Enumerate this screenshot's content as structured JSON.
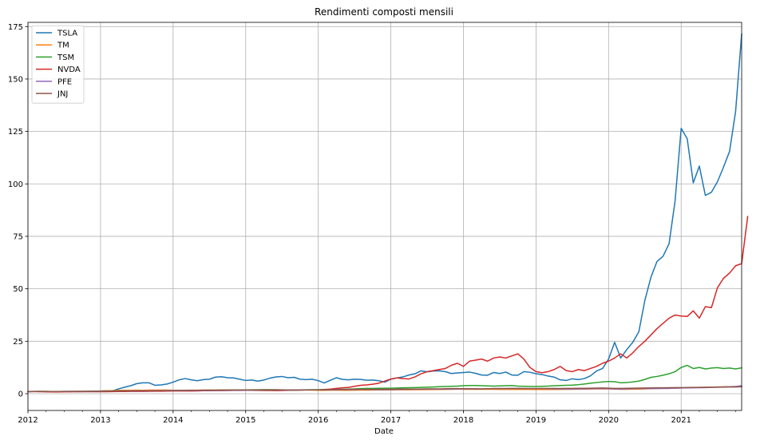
{
  "chart_data": {
    "type": "line",
    "title": "Rendimenti composti mensili",
    "xlabel": "Date",
    "ylabel": "",
    "x_axis": {
      "start": "2012-01",
      "end": "2021-11",
      "ticks": [
        "2012",
        "2013",
        "2014",
        "2015",
        "2016",
        "2017",
        "2018",
        "2019",
        "2020",
        "2021"
      ]
    },
    "ylim": [
      -8,
      177
    ],
    "yticks": [
      0,
      25,
      50,
      75,
      100,
      125,
      150,
      175
    ],
    "grid": true,
    "legend_position": "top-left",
    "series": [
      {
        "name": "TSLA",
        "color": "#1f77b4",
        "start": "2012-01",
        "values": [
          1,
          1.1,
          1.1,
          1.0,
          1.0,
          1.0,
          1.1,
          1.1,
          1.0,
          1.0,
          1.1,
          1.1,
          1.2,
          1.3,
          1.4,
          2.3,
          3.1,
          3.8,
          4.8,
          5.2,
          5.2,
          4.0,
          4.2,
          4.6,
          5.5,
          6.6,
          7.2,
          6.6,
          6.2,
          6.7,
          6.9,
          7.9,
          8.1,
          7.6,
          7.5,
          6.9,
          6.3,
          6.5,
          6.0,
          6.5,
          7.4,
          8.0,
          8.2,
          7.6,
          7.8,
          6.9,
          6.7,
          6.9,
          6.2,
          5.1,
          6.4,
          7.6,
          6.8,
          6.6,
          6.9,
          6.8,
          6.4,
          6.5,
          6.2,
          5.5,
          6.9,
          7.5,
          8.0,
          8.9,
          9.5,
          10.9,
          10.4,
          10.8,
          10.9,
          10.5,
          9.6,
          9.9,
          10.1,
          10.3,
          9.7,
          8.9,
          8.8,
          10.1,
          9.6,
          10.3,
          8.9,
          8.8,
          10.5,
          10.2,
          9.5,
          9.1,
          8.4,
          7.9,
          6.6,
          6.3,
          7.1,
          6.7,
          7.2,
          8.5,
          10.8,
          12.0,
          16.5,
          24.5,
          17.0,
          21.0,
          24.5,
          29.5,
          44.5,
          55.5,
          63.0,
          65.5,
          71.5,
          92.0,
          126.5,
          121.5,
          100.5,
          108.5,
          94.5,
          96.0,
          101.0,
          108.0,
          115.5,
          134.5,
          171.5
        ]
      },
      {
        "name": "TM",
        "color": "#ff7f0e",
        "start": "2012-01",
        "values": [
          1,
          1.05,
          1.1,
          1.1,
          1.0,
          1.0,
          1.0,
          1.1,
          1.1,
          1.1,
          1.1,
          1.2,
          1.3,
          1.4,
          1.45,
          1.6,
          1.6,
          1.6,
          1.65,
          1.6,
          1.7,
          1.7,
          1.7,
          1.7,
          1.6,
          1.6,
          1.6,
          1.65,
          1.65,
          1.7,
          1.7,
          1.7,
          1.75,
          1.75,
          1.75,
          1.75,
          1.8,
          1.8,
          1.85,
          1.9,
          1.9,
          1.9,
          1.85,
          1.8,
          1.75,
          1.75,
          1.75,
          1.7,
          1.6,
          1.6,
          1.65,
          1.7,
          1.6,
          1.6,
          1.65,
          1.7,
          1.7,
          1.75,
          1.8,
          1.8,
          1.8,
          1.85,
          1.85,
          1.85,
          1.9,
          1.9,
          1.95,
          2.0,
          2.0,
          2.05,
          2.1,
          2.2,
          2.1,
          2.1,
          2.15,
          2.1,
          2.1,
          2.1,
          2.05,
          2.05,
          2.1,
          2.05,
          2.1,
          2.05,
          2.0,
          2.0,
          2.0,
          2.05,
          2.05,
          2.1,
          2.1,
          2.15,
          2.2,
          2.25,
          2.3,
          2.3,
          2.3,
          2.2,
          2.1,
          2.1,
          2.15,
          2.2,
          2.3,
          2.4,
          2.45,
          2.5,
          2.5,
          2.6,
          2.7,
          2.8,
          2.9,
          3.0,
          3.1,
          3.1,
          3.2,
          3.3,
          3.3,
          3.4,
          3.4
        ]
      },
      {
        "name": "TSM",
        "color": "#2ca02c",
        "start": "2012-01",
        "values": [
          1,
          1.05,
          1.1,
          1.1,
          1.05,
          1.0,
          1.05,
          1.05,
          1.1,
          1.1,
          1.15,
          1.2,
          1.25,
          1.3,
          1.3,
          1.35,
          1.35,
          1.3,
          1.3,
          1.3,
          1.35,
          1.35,
          1.4,
          1.4,
          1.45,
          1.5,
          1.55,
          1.55,
          1.6,
          1.6,
          1.65,
          1.65,
          1.7,
          1.7,
          1.75,
          1.75,
          1.8,
          1.85,
          1.85,
          1.9,
          1.9,
          1.85,
          1.8,
          1.75,
          1.8,
          1.8,
          1.85,
          1.9,
          1.9,
          1.95,
          2.0,
          2.1,
          2.1,
          2.2,
          2.3,
          2.4,
          2.5,
          2.5,
          2.55,
          2.6,
          2.6,
          2.7,
          2.8,
          2.85,
          2.9,
          3.0,
          3.1,
          3.2,
          3.3,
          3.4,
          3.5,
          3.6,
          3.8,
          3.9,
          3.9,
          3.8,
          3.7,
          3.6,
          3.7,
          3.8,
          3.9,
          3.6,
          3.5,
          3.4,
          3.4,
          3.5,
          3.6,
          3.8,
          3.9,
          4.0,
          4.1,
          4.3,
          4.6,
          5.0,
          5.3,
          5.6,
          5.8,
          5.7,
          5.2,
          5.3,
          5.6,
          6.0,
          6.8,
          7.8,
          8.2,
          8.8,
          9.5,
          10.5,
          12.5,
          13.5,
          12.0,
          12.5,
          11.8,
          12.2,
          12.4,
          12.0,
          12.2,
          11.8,
          12.3
        ]
      },
      {
        "name": "NVDA",
        "color": "#d62728",
        "start": "2012-01",
        "values": [
          1,
          1.0,
          0.95,
          0.9,
          0.85,
          0.85,
          0.9,
          0.9,
          0.95,
          0.95,
          0.95,
          0.95,
          0.95,
          0.95,
          1.0,
          1.05,
          1.05,
          1.1,
          1.1,
          1.1,
          1.15,
          1.2,
          1.2,
          1.25,
          1.3,
          1.3,
          1.35,
          1.3,
          1.35,
          1.4,
          1.4,
          1.45,
          1.45,
          1.5,
          1.55,
          1.55,
          1.6,
          1.6,
          1.55,
          1.5,
          1.5,
          1.45,
          1.5,
          1.6,
          1.7,
          1.75,
          1.8,
          1.8,
          1.8,
          2.0,
          2.2,
          2.5,
          2.8,
          3.0,
          3.5,
          4.0,
          4.2,
          4.5,
          5.0,
          6.0,
          7.0,
          7.5,
          7.2,
          7.0,
          8.0,
          9.5,
          10.5,
          11.0,
          11.5,
          12.0,
          13.5,
          14.5,
          13.0,
          15.5,
          16.0,
          16.5,
          15.5,
          17.0,
          17.5,
          17.0,
          18.0,
          19.0,
          16.5,
          12.5,
          10.5,
          10.0,
          10.5,
          11.5,
          13.0,
          11.0,
          10.5,
          11.5,
          11.0,
          12.0,
          13.0,
          14.5,
          15.5,
          17.0,
          19.0,
          17.0,
          19.5,
          22.5,
          25.0,
          28.0,
          31.0,
          33.5,
          36.0,
          37.5,
          37.0,
          36.8,
          39.5,
          36.0,
          41.5,
          41.0,
          50.5,
          55.0,
          57.5,
          61.0,
          62.0,
          84.5
        ]
      },
      {
        "name": "PFE",
        "color": "#9467bd",
        "start": "2012-01",
        "values": [
          1,
          1.02,
          1.04,
          1.05,
          1.04,
          1.06,
          1.07,
          1.08,
          1.1,
          1.1,
          1.1,
          1.12,
          1.15,
          1.2,
          1.25,
          1.3,
          1.3,
          1.3,
          1.35,
          1.35,
          1.35,
          1.4,
          1.4,
          1.4,
          1.4,
          1.45,
          1.45,
          1.5,
          1.5,
          1.5,
          1.5,
          1.5,
          1.55,
          1.55,
          1.6,
          1.6,
          1.6,
          1.65,
          1.7,
          1.7,
          1.75,
          1.75,
          1.8,
          1.75,
          1.7,
          1.75,
          1.8,
          1.8,
          1.8,
          1.8,
          1.85,
          1.85,
          1.9,
          1.9,
          1.95,
          2.0,
          2.0,
          1.95,
          1.9,
          1.9,
          1.95,
          2.0,
          2.05,
          2.1,
          2.1,
          2.15,
          2.15,
          2.2,
          2.2,
          2.2,
          2.25,
          2.25,
          2.3,
          2.3,
          2.35,
          2.3,
          2.35,
          2.4,
          2.4,
          2.4,
          2.45,
          2.5,
          2.45,
          2.4,
          2.4,
          2.4,
          2.35,
          2.3,
          2.3,
          2.25,
          2.25,
          2.3,
          2.3,
          2.35,
          2.4,
          2.4,
          2.35,
          2.3,
          2.2,
          2.3,
          2.4,
          2.5,
          2.45,
          2.4,
          2.45,
          2.5,
          2.5,
          2.6,
          2.7,
          2.75,
          2.8,
          2.85,
          2.9,
          3.0,
          3.1,
          3.2,
          3.3,
          3.4,
          3.8
        ]
      },
      {
        "name": "JNJ",
        "color": "#8c564b",
        "start": "2012-01",
        "values": [
          1,
          1.02,
          1.03,
          1.04,
          1.04,
          1.05,
          1.06,
          1.06,
          1.08,
          1.08,
          1.1,
          1.1,
          1.15,
          1.2,
          1.25,
          1.3,
          1.3,
          1.35,
          1.4,
          1.4,
          1.4,
          1.45,
          1.45,
          1.5,
          1.5,
          1.55,
          1.55,
          1.6,
          1.6,
          1.65,
          1.65,
          1.65,
          1.7,
          1.7,
          1.75,
          1.75,
          1.75,
          1.75,
          1.7,
          1.7,
          1.7,
          1.7,
          1.7,
          1.65,
          1.65,
          1.7,
          1.75,
          1.8,
          1.8,
          1.85,
          1.9,
          1.95,
          2.0,
          2.05,
          2.1,
          2.1,
          2.05,
          2.05,
          2.05,
          2.1,
          2.1,
          2.15,
          2.2,
          2.2,
          2.2,
          2.25,
          2.3,
          2.3,
          2.3,
          2.35,
          2.4,
          2.4,
          2.4,
          2.35,
          2.3,
          2.3,
          2.35,
          2.4,
          2.45,
          2.45,
          2.5,
          2.45,
          2.4,
          2.4,
          2.4,
          2.45,
          2.45,
          2.5,
          2.45,
          2.5,
          2.5,
          2.55,
          2.55,
          2.6,
          2.65,
          2.7,
          2.6,
          2.5,
          2.5,
          2.55,
          2.6,
          2.65,
          2.7,
          2.75,
          2.8,
          2.8,
          2.85,
          2.9,
          2.9,
          2.95,
          3.0,
          3.0,
          3.05,
          3.1,
          3.1,
          3.15,
          3.2,
          3.2,
          3.3
        ]
      }
    ]
  }
}
